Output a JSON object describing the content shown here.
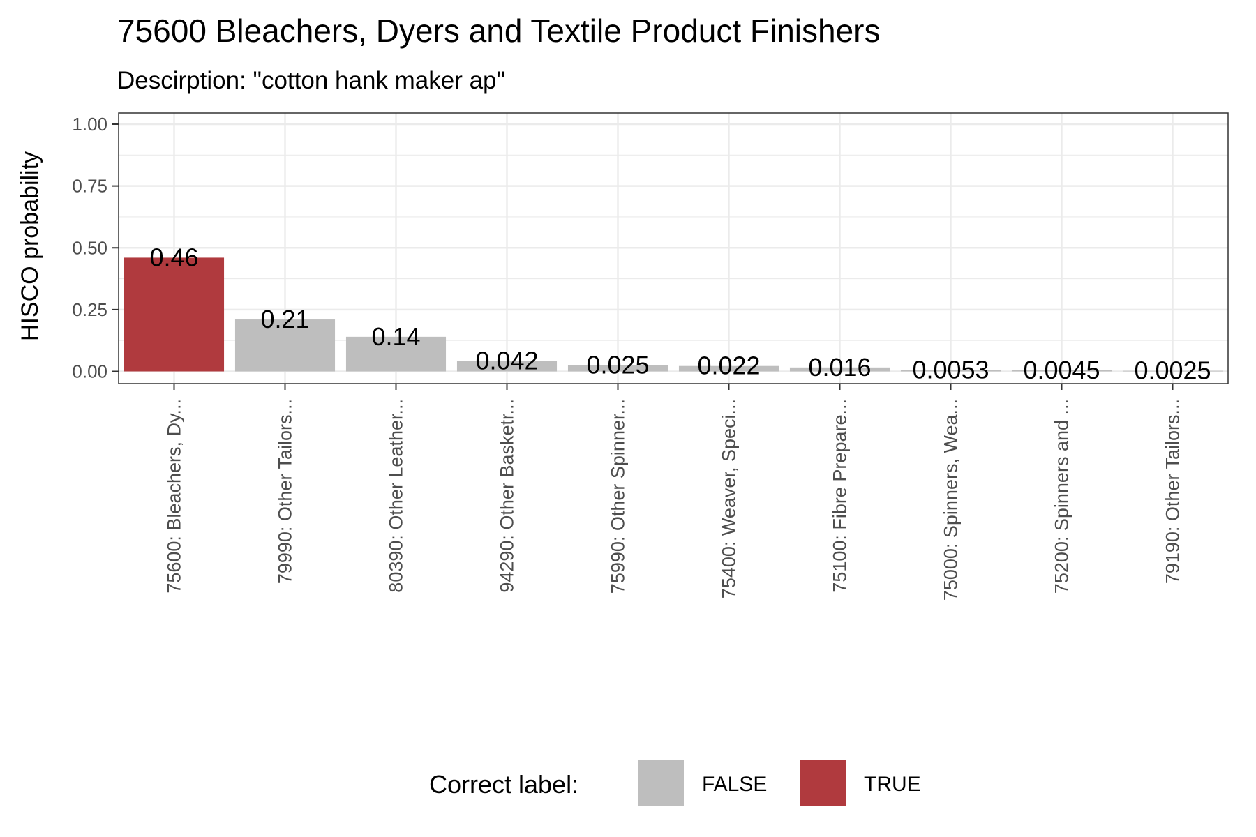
{
  "chart_data": {
    "type": "bar",
    "title": "75600 Bleachers, Dyers and Textile Product Finishers",
    "subtitle": "Descirption: \"cotton hank maker ap\"",
    "ylabel": "HISCO probability",
    "xlabel": "",
    "ylim": [
      0,
      1
    ],
    "yticks": [
      "0.00",
      "0.25",
      "0.50",
      "0.75",
      "1.00"
    ],
    "grid": true,
    "categories": [
      "75600: Bleachers, Dy...",
      "79990: Other Tailors...",
      "80390: Other Leather...",
      "94290: Other Basketr...",
      "75990: Other Spinner...",
      "75400: Weaver, Speci...",
      "75100: Fibre Prepare...",
      "75000: Spinners, Wea...",
      "75200: Spinners and ...",
      "79190: Other Tailors..."
    ],
    "values": [
      0.46,
      0.21,
      0.14,
      0.042,
      0.025,
      0.022,
      0.016,
      0.0053,
      0.0045,
      0.0025
    ],
    "value_labels": [
      "0.46",
      "0.21",
      "0.14",
      "0.042",
      "0.025",
      "0.022",
      "0.016",
      "0.0053",
      "0.0045",
      "0.0025"
    ],
    "correct": [
      "TRUE",
      "FALSE",
      "FALSE",
      "FALSE",
      "FALSE",
      "FALSE",
      "FALSE",
      "FALSE",
      "FALSE",
      "FALSE"
    ],
    "legend": {
      "title": "Correct label:",
      "placement": "bottom",
      "entries": [
        {
          "label": "FALSE",
          "color": "#bebebe"
        },
        {
          "label": "TRUE",
          "color": "#b03a3e"
        }
      ]
    }
  }
}
